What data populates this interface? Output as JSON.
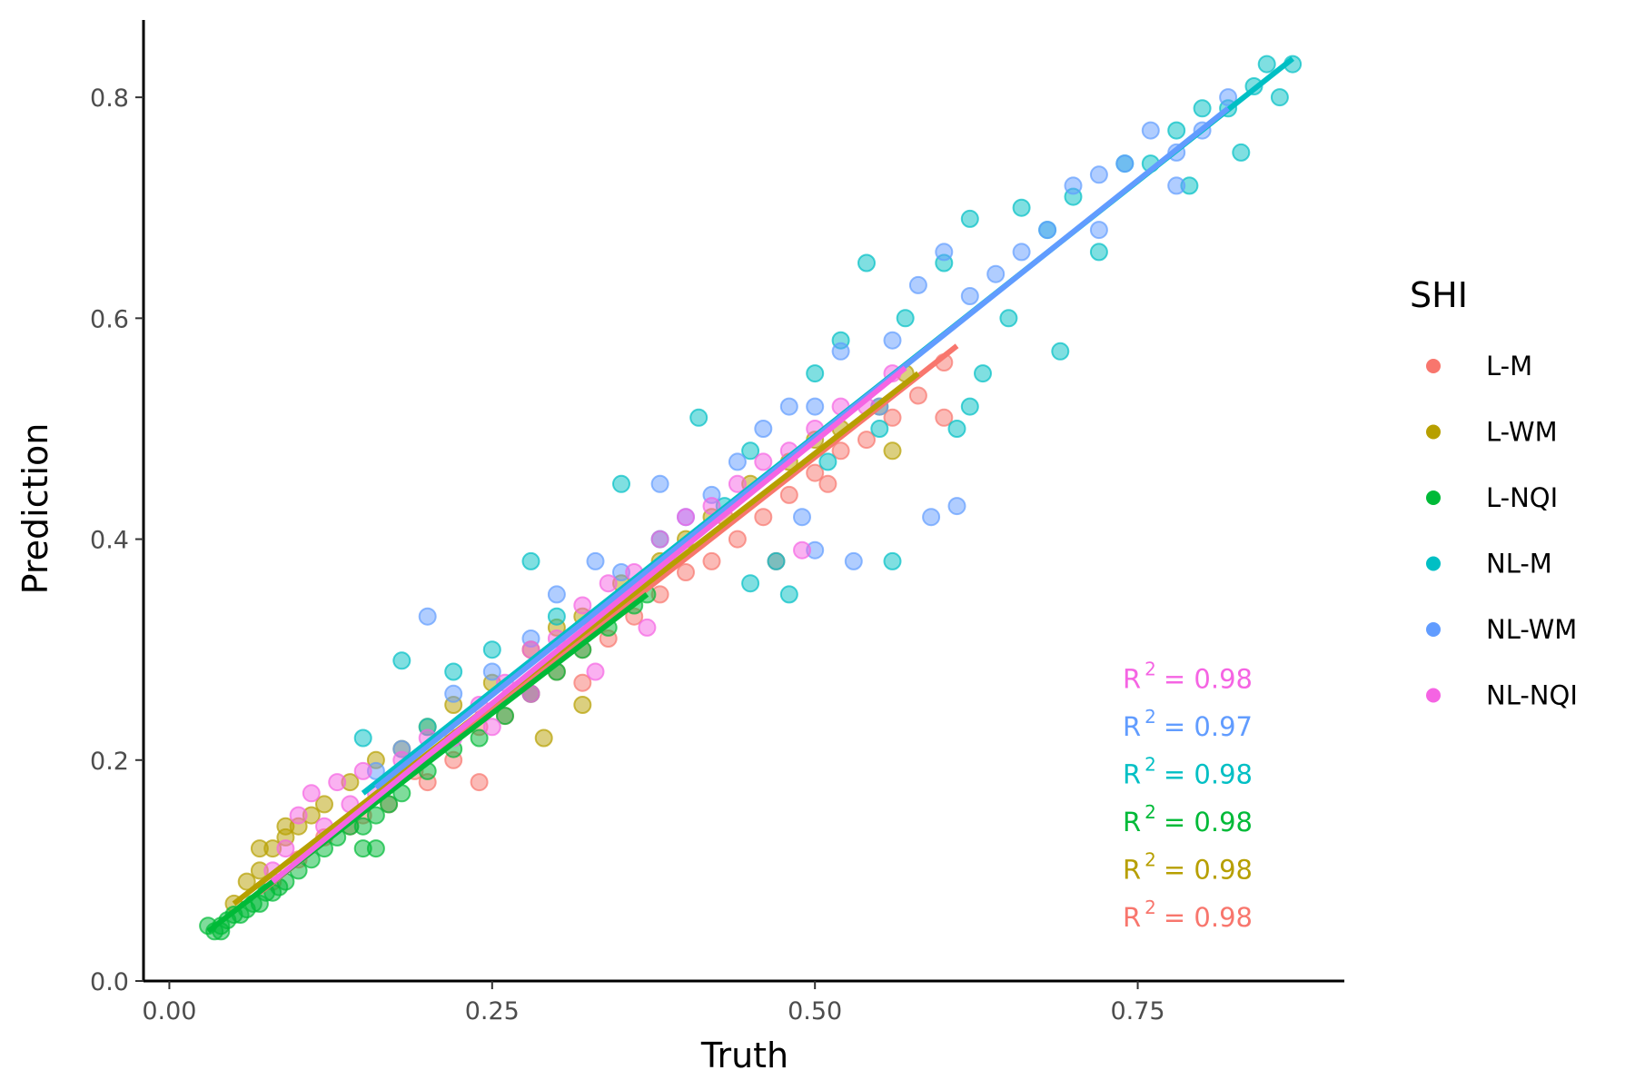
{
  "chart_data": {
    "type": "scatter",
    "xlabel": "Truth",
    "ylabel": "Prediction",
    "xlim": [
      -0.02,
      0.91
    ],
    "ylim": [
      0.0,
      0.87
    ],
    "x_ticks": [
      {
        "value": 0.0,
        "label": "0.00"
      },
      {
        "value": 0.25,
        "label": "0.25"
      },
      {
        "value": 0.5,
        "label": "0.50"
      },
      {
        "value": 0.75,
        "label": "0.75"
      }
    ],
    "y_ticks": [
      {
        "value": 0.0,
        "label": "0.0"
      },
      {
        "value": 0.2,
        "label": "0.2"
      },
      {
        "value": 0.4,
        "label": "0.4"
      },
      {
        "value": 0.6,
        "label": "0.6"
      },
      {
        "value": 0.8,
        "label": "0.8"
      }
    ],
    "grid": false,
    "legend": {
      "title": "SHI",
      "position": "right"
    },
    "series": [
      {
        "name": "L-M",
        "color": "#F8766D",
        "r2_label": "= 0.98",
        "fit": {
          "x": [
            0.07,
            0.61
          ],
          "y": [
            0.08,
            0.575
          ]
        },
        "points": [
          [
            0.08,
            0.09
          ],
          [
            0.1,
            0.11
          ],
          [
            0.12,
            0.13
          ],
          [
            0.15,
            0.15
          ],
          [
            0.17,
            0.16
          ],
          [
            0.2,
            0.18
          ],
          [
            0.22,
            0.2
          ],
          [
            0.24,
            0.23
          ],
          [
            0.26,
            0.24
          ],
          [
            0.28,
            0.26
          ],
          [
            0.3,
            0.28
          ],
          [
            0.32,
            0.3
          ],
          [
            0.34,
            0.31
          ],
          [
            0.36,
            0.33
          ],
          [
            0.38,
            0.35
          ],
          [
            0.4,
            0.37
          ],
          [
            0.42,
            0.38
          ],
          [
            0.44,
            0.4
          ],
          [
            0.46,
            0.42
          ],
          [
            0.48,
            0.44
          ],
          [
            0.5,
            0.46
          ],
          [
            0.52,
            0.48
          ],
          [
            0.54,
            0.49
          ],
          [
            0.56,
            0.51
          ],
          [
            0.58,
            0.53
          ],
          [
            0.6,
            0.56
          ],
          [
            0.6,
            0.51
          ],
          [
            0.51,
            0.45
          ],
          [
            0.47,
            0.38
          ],
          [
            0.24,
            0.18
          ],
          [
            0.32,
            0.27
          ],
          [
            0.43,
            0.42
          ],
          [
            0.36,
            0.35
          ],
          [
            0.19,
            0.19
          ],
          [
            0.14,
            0.14
          ]
        ]
      },
      {
        "name": "L-WM",
        "color": "#B79F00",
        "r2_label": "= 0.98",
        "fit": {
          "x": [
            0.05,
            0.58
          ],
          "y": [
            0.07,
            0.55
          ]
        },
        "points": [
          [
            0.05,
            0.07
          ],
          [
            0.06,
            0.09
          ],
          [
            0.07,
            0.1
          ],
          [
            0.08,
            0.12
          ],
          [
            0.09,
            0.13
          ],
          [
            0.1,
            0.14
          ],
          [
            0.11,
            0.15
          ],
          [
            0.12,
            0.16
          ],
          [
            0.14,
            0.18
          ],
          [
            0.16,
            0.2
          ],
          [
            0.18,
            0.21
          ],
          [
            0.2,
            0.23
          ],
          [
            0.22,
            0.25
          ],
          [
            0.25,
            0.27
          ],
          [
            0.28,
            0.3
          ],
          [
            0.3,
            0.32
          ],
          [
            0.32,
            0.33
          ],
          [
            0.35,
            0.36
          ],
          [
            0.38,
            0.38
          ],
          [
            0.4,
            0.4
          ],
          [
            0.42,
            0.42
          ],
          [
            0.45,
            0.45
          ],
          [
            0.48,
            0.47
          ],
          [
            0.5,
            0.49
          ],
          [
            0.52,
            0.5
          ],
          [
            0.55,
            0.52
          ],
          [
            0.57,
            0.55
          ],
          [
            0.56,
            0.48
          ],
          [
            0.32,
            0.25
          ],
          [
            0.29,
            0.22
          ],
          [
            0.09,
            0.14
          ],
          [
            0.07,
            0.12
          ]
        ]
      },
      {
        "name": "L-NQI",
        "color": "#00BA38",
        "r2_label": "= 0.98",
        "fit": {
          "x": [
            0.03,
            0.37
          ],
          "y": [
            0.045,
            0.35
          ]
        },
        "points": [
          [
            0.03,
            0.05
          ],
          [
            0.035,
            0.045
          ],
          [
            0.04,
            0.05
          ],
          [
            0.045,
            0.055
          ],
          [
            0.05,
            0.06
          ],
          [
            0.055,
            0.06
          ],
          [
            0.06,
            0.065
          ],
          [
            0.065,
            0.07
          ],
          [
            0.07,
            0.07
          ],
          [
            0.075,
            0.08
          ],
          [
            0.08,
            0.08
          ],
          [
            0.085,
            0.085
          ],
          [
            0.09,
            0.09
          ],
          [
            0.1,
            0.1
          ],
          [
            0.11,
            0.11
          ],
          [
            0.12,
            0.12
          ],
          [
            0.13,
            0.13
          ],
          [
            0.14,
            0.14
          ],
          [
            0.15,
            0.14
          ],
          [
            0.16,
            0.15
          ],
          [
            0.17,
            0.16
          ],
          [
            0.18,
            0.17
          ],
          [
            0.2,
            0.19
          ],
          [
            0.22,
            0.21
          ],
          [
            0.24,
            0.22
          ],
          [
            0.26,
            0.24
          ],
          [
            0.28,
            0.26
          ],
          [
            0.3,
            0.28
          ],
          [
            0.32,
            0.3
          ],
          [
            0.34,
            0.32
          ],
          [
            0.36,
            0.34
          ],
          [
            0.37,
            0.35
          ],
          [
            0.15,
            0.12
          ],
          [
            0.16,
            0.12
          ],
          [
            0.04,
            0.045
          ]
        ]
      },
      {
        "name": "NL-M",
        "color": "#00BFC4",
        "r2_label": "= 0.98",
        "fit": {
          "x": [
            0.15,
            0.87
          ],
          "y": [
            0.17,
            0.835
          ]
        },
        "points": [
          [
            0.15,
            0.22
          ],
          [
            0.18,
            0.29
          ],
          [
            0.2,
            0.23
          ],
          [
            0.22,
            0.28
          ],
          [
            0.25,
            0.3
          ],
          [
            0.28,
            0.38
          ],
          [
            0.3,
            0.33
          ],
          [
            0.35,
            0.45
          ],
          [
            0.38,
            0.4
          ],
          [
            0.41,
            0.51
          ],
          [
            0.43,
            0.43
          ],
          [
            0.45,
            0.48
          ],
          [
            0.47,
            0.38
          ],
          [
            0.48,
            0.35
          ],
          [
            0.5,
            0.55
          ],
          [
            0.51,
            0.47
          ],
          [
            0.52,
            0.58
          ],
          [
            0.54,
            0.65
          ],
          [
            0.55,
            0.5
          ],
          [
            0.56,
            0.38
          ],
          [
            0.57,
            0.6
          ],
          [
            0.6,
            0.65
          ],
          [
            0.62,
            0.69
          ],
          [
            0.63,
            0.55
          ],
          [
            0.65,
            0.6
          ],
          [
            0.66,
            0.7
          ],
          [
            0.68,
            0.68
          ],
          [
            0.69,
            0.57
          ],
          [
            0.7,
            0.71
          ],
          [
            0.72,
            0.66
          ],
          [
            0.74,
            0.74
          ],
          [
            0.76,
            0.74
          ],
          [
            0.78,
            0.77
          ],
          [
            0.8,
            0.79
          ],
          [
            0.82,
            0.79
          ],
          [
            0.84,
            0.81
          ],
          [
            0.85,
            0.83
          ],
          [
            0.86,
            0.8
          ],
          [
            0.87,
            0.83
          ],
          [
            0.83,
            0.75
          ],
          [
            0.79,
            0.72
          ],
          [
            0.61,
            0.5
          ],
          [
            0.62,
            0.52
          ],
          [
            0.45,
            0.36
          ]
        ]
      },
      {
        "name": "NL-WM",
        "color": "#619CFF",
        "r2_label": "= 0.97",
        "fit": {
          "x": [
            0.16,
            0.82
          ],
          "y": [
            0.175,
            0.79
          ]
        },
        "points": [
          [
            0.16,
            0.19
          ],
          [
            0.18,
            0.21
          ],
          [
            0.2,
            0.33
          ],
          [
            0.22,
            0.26
          ],
          [
            0.25,
            0.28
          ],
          [
            0.28,
            0.31
          ],
          [
            0.3,
            0.35
          ],
          [
            0.33,
            0.38
          ],
          [
            0.35,
            0.37
          ],
          [
            0.38,
            0.45
          ],
          [
            0.4,
            0.42
          ],
          [
            0.42,
            0.44
          ],
          [
            0.44,
            0.47
          ],
          [
            0.46,
            0.5
          ],
          [
            0.48,
            0.52
          ],
          [
            0.5,
            0.52
          ],
          [
            0.5,
            0.39
          ],
          [
            0.52,
            0.57
          ],
          [
            0.53,
            0.38
          ],
          [
            0.55,
            0.52
          ],
          [
            0.56,
            0.58
          ],
          [
            0.58,
            0.63
          ],
          [
            0.59,
            0.42
          ],
          [
            0.6,
            0.66
          ],
          [
            0.61,
            0.43
          ],
          [
            0.62,
            0.62
          ],
          [
            0.64,
            0.64
          ],
          [
            0.66,
            0.66
          ],
          [
            0.68,
            0.68
          ],
          [
            0.7,
            0.72
          ],
          [
            0.72,
            0.73
          ],
          [
            0.74,
            0.74
          ],
          [
            0.76,
            0.77
          ],
          [
            0.78,
            0.75
          ],
          [
            0.8,
            0.77
          ],
          [
            0.82,
            0.8
          ],
          [
            0.72,
            0.68
          ],
          [
            0.78,
            0.72
          ],
          [
            0.49,
            0.42
          ]
        ]
      },
      {
        "name": "NL-NQI",
        "color": "#F564E3",
        "r2_label": "= 0.98",
        "fit": {
          "x": [
            0.08,
            0.57
          ],
          "y": [
            0.09,
            0.555
          ]
        },
        "points": [
          [
            0.08,
            0.1
          ],
          [
            0.09,
            0.12
          ],
          [
            0.1,
            0.15
          ],
          [
            0.11,
            0.17
          ],
          [
            0.12,
            0.14
          ],
          [
            0.13,
            0.18
          ],
          [
            0.14,
            0.16
          ],
          [
            0.15,
            0.19
          ],
          [
            0.16,
            0.17
          ],
          [
            0.18,
            0.2
          ],
          [
            0.2,
            0.22
          ],
          [
            0.22,
            0.22
          ],
          [
            0.24,
            0.25
          ],
          [
            0.26,
            0.27
          ],
          [
            0.28,
            0.3
          ],
          [
            0.3,
            0.31
          ],
          [
            0.32,
            0.34
          ],
          [
            0.34,
            0.36
          ],
          [
            0.36,
            0.37
          ],
          [
            0.38,
            0.4
          ],
          [
            0.4,
            0.42
          ],
          [
            0.42,
            0.43
          ],
          [
            0.44,
            0.45
          ],
          [
            0.46,
            0.47
          ],
          [
            0.48,
            0.48
          ],
          [
            0.5,
            0.5
          ],
          [
            0.52,
            0.52
          ],
          [
            0.54,
            0.52
          ],
          [
            0.56,
            0.55
          ],
          [
            0.49,
            0.39
          ],
          [
            0.28,
            0.26
          ],
          [
            0.25,
            0.23
          ],
          [
            0.33,
            0.28
          ],
          [
            0.37,
            0.32
          ]
        ]
      }
    ]
  }
}
